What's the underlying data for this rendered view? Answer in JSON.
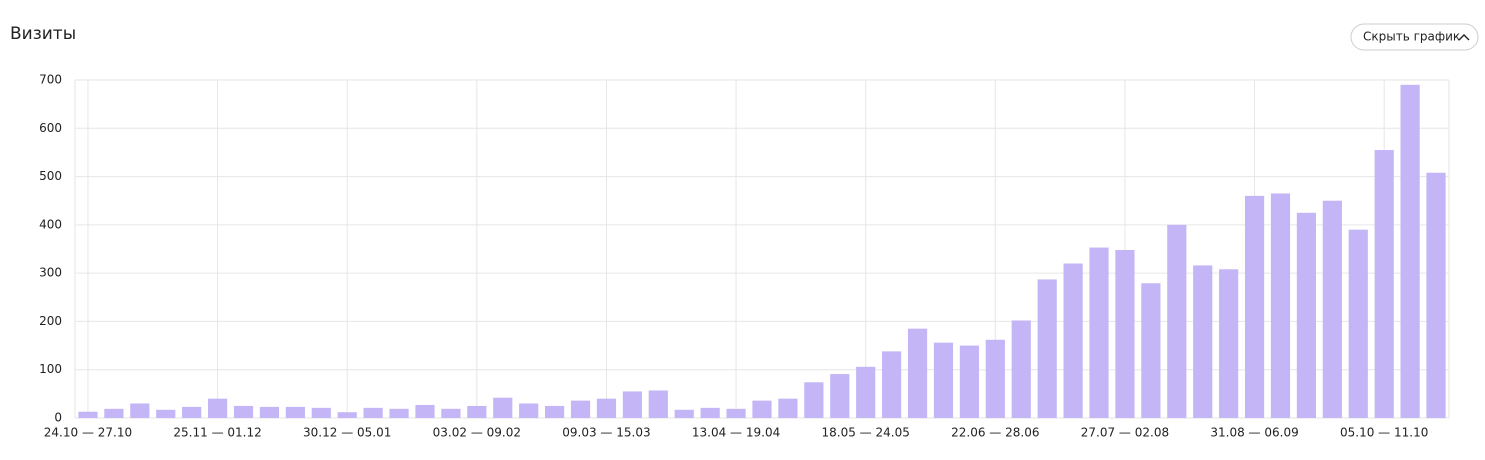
{
  "chart_data": {
    "type": "bar",
    "title": "Визиты",
    "categories": [
      "24.10 — 27.10",
      null,
      null,
      null,
      null,
      "25.11 — 01.12",
      null,
      null,
      null,
      null,
      "30.12 — 05.01",
      null,
      null,
      null,
      null,
      "03.02 — 09.02",
      null,
      null,
      null,
      null,
      "09.03 — 15.03",
      null,
      null,
      null,
      null,
      "13.04 — 19.04",
      null,
      null,
      null,
      null,
      "18.05 — 24.05",
      null,
      null,
      null,
      null,
      "22.06 — 28.06",
      null,
      null,
      null,
      null,
      "27.07 — 02.08",
      null,
      null,
      null,
      null,
      "31.08 — 06.09",
      null,
      null,
      null,
      null,
      "05.10 — 11.10",
      null,
      null
    ],
    "values": [
      13,
      19,
      30,
      17,
      23,
      40,
      25,
      23,
      23,
      21,
      12,
      21,
      19,
      27,
      19,
      25,
      42,
      30,
      25,
      36,
      40,
      55,
      57,
      17,
      21,
      19,
      36,
      40,
      74,
      91,
      106,
      138,
      185,
      156,
      150,
      162,
      202,
      287,
      320,
      353,
      348,
      279,
      400,
      316,
      308,
      460,
      465,
      425,
      450,
      390,
      555,
      690,
      508
    ],
    "color": "#c4b5f7",
    "ylim": [
      0,
      700
    ],
    "yticks": [
      0,
      100,
      200,
      300,
      400,
      500,
      600,
      700
    ],
    "grid": true
  },
  "controls": {
    "hide_chart": "Скрыть график"
  }
}
